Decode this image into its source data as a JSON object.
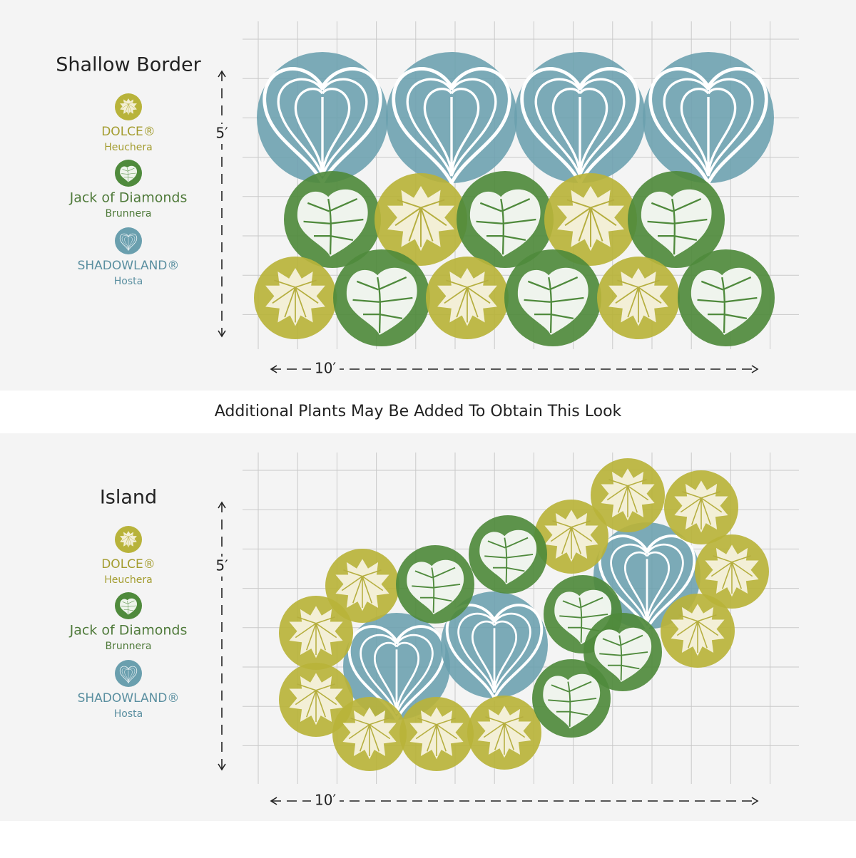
{
  "caption": "Additional Plants May Be Added To Obtain This Look",
  "panels": [
    {
      "title": "Shallow Border",
      "legend": [
        {
          "name": "DOLCE®",
          "genus": "Heuchera"
        },
        {
          "name": "Jack of Diamonds",
          "genus": "Brunnera"
        },
        {
          "name": "SHADOWLAND®",
          "genus": "Hosta"
        }
      ],
      "height_label": "5′",
      "width_label": "10′"
    },
    {
      "title": "Island",
      "legend": [
        {
          "name": "DOLCE®",
          "genus": "Heuchera"
        },
        {
          "name": "Jack of Diamonds",
          "genus": "Brunnera"
        },
        {
          "name": "SHADOWLAND®",
          "genus": "Hosta"
        }
      ],
      "height_label": "5′",
      "width_label": "10′"
    }
  ]
}
